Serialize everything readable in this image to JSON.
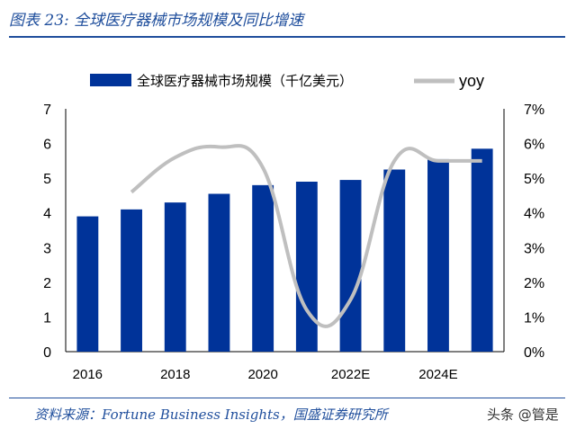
{
  "figure": {
    "title": "图表 23:  全球医疗器械市场规模及同比增速",
    "source": "资料来源：Fortune Business Insights，国盛证券研究所",
    "watermark": "头条 @管是"
  },
  "colors": {
    "bar": "#003399",
    "line": "#bfbfbf",
    "accent": "#1f4e9c"
  },
  "chart_data": {
    "type": "bar",
    "categories": [
      "2016",
      "2017",
      "2018",
      "2019",
      "2020",
      "2021",
      "2022E",
      "2023E",
      "2024E",
      "2025E"
    ],
    "x_tick_labels": [
      "2016",
      "2018",
      "2020",
      "2022E",
      "2024E"
    ],
    "series": [
      {
        "name": "全球医疗器械市场规模（千亿美元）",
        "type": "bar",
        "axis": "left",
        "values": [
          3.9,
          4.1,
          4.3,
          4.55,
          4.8,
          4.9,
          4.95,
          5.25,
          5.55,
          5.85
        ]
      },
      {
        "name": "yoy",
        "type": "line",
        "axis": "right",
        "values": [
          null,
          4.6,
          5.6,
          5.9,
          5.3,
          1.2,
          1.5,
          5.5,
          5.5,
          5.5
        ]
      }
    ],
    "y_left": {
      "min": 0,
      "max": 7,
      "ticks": [
        "0",
        "1",
        "2",
        "3",
        "4",
        "5",
        "6",
        "7"
      ]
    },
    "y_right": {
      "min": 0,
      "max": 7,
      "ticks": [
        "0%",
        "1%",
        "2%",
        "3%",
        "4%",
        "5%",
        "6%",
        "7%"
      ]
    },
    "legend": "top",
    "grid": false
  }
}
